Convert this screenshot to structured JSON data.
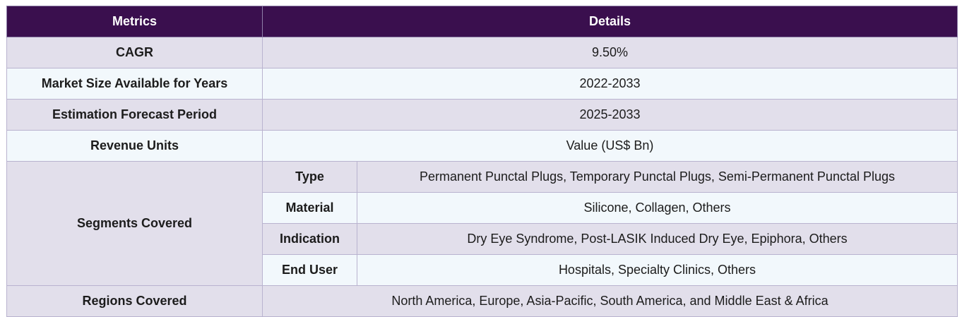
{
  "header": {
    "col1": "Metrics",
    "col2": "Details"
  },
  "rows": [
    {
      "label": "CAGR",
      "value": "9.50%"
    },
    {
      "label": "Market Size Available for Years",
      "value": "2022-2033"
    },
    {
      "label": "Estimation Forecast Period",
      "value": "2025-2033"
    },
    {
      "label": "Revenue Units",
      "value": "Value (US$ Bn)"
    }
  ],
  "segments": {
    "label": "Segments Covered",
    "items": [
      {
        "label": "Type",
        "value": "Permanent Punctal Plugs, Temporary Punctal Plugs, Semi-Permanent Punctal Plugs"
      },
      {
        "label": "Material",
        "value": "Silicone, Collagen, Others"
      },
      {
        "label": "Indication",
        "value": "Dry Eye Syndrome, Post-LASIK Induced Dry Eye, Epiphora, Others"
      },
      {
        "label": "End User",
        "value": "Hospitals, Specialty Clinics, Others"
      }
    ]
  },
  "regions": {
    "label": "Regions Covered",
    "value": "North America, Europe, Asia-Pacific, South America, and Middle East & Africa"
  }
}
